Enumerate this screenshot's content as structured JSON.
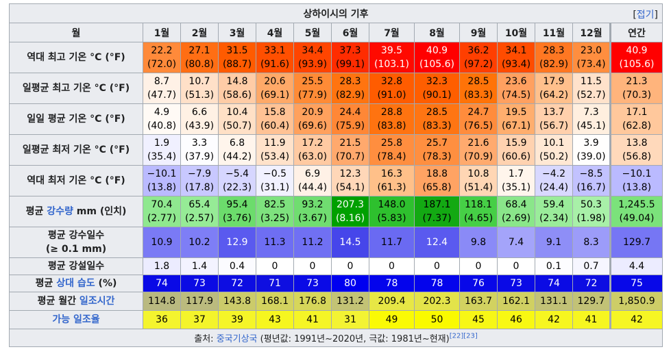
{
  "title": "상하이시의 기후",
  "toggle": {
    "label": "접기",
    "open": "[",
    "close": "]"
  },
  "months": [
    "1월",
    "2월",
    "3월",
    "4월",
    "5월",
    "6월",
    "7월",
    "8월",
    "9월",
    "10월",
    "11월",
    "12월",
    "연간"
  ],
  "corner": "월",
  "rows": [
    {
      "label_parts": [
        {
          "text": "역대 최고 기온 °C (°F)",
          "link": false
        }
      ],
      "bg": [
        "#ff8a3a",
        "#ff6e14",
        "#ff5b00",
        "#ff4f00",
        "#ff4500",
        "#ff2c00",
        "#ff0a00",
        "#ff0000",
        "#ff3f00",
        "#ff4c00",
        "#ff7722",
        "#ff8e3f",
        "#ff0000"
      ],
      "fg": [
        "#000000",
        "#000000",
        "#000000",
        "#000000",
        "#000000",
        "#000000",
        "#ffffff",
        "#ffffff",
        "#000000",
        "#000000",
        "#000000",
        "#000000",
        "#ffffff"
      ],
      "values": [
        [
          "22.2",
          "(72.0)"
        ],
        [
          "27.1",
          "(80.8)"
        ],
        [
          "31.5",
          "(88.7)"
        ],
        [
          "33.1",
          "(91.6)"
        ],
        [
          "34.4",
          "(93.9)"
        ],
        [
          "37.3",
          "(99.1)"
        ],
        [
          "39.5",
          "(103.1)"
        ],
        [
          "40.9",
          "(105.6)"
        ],
        [
          "36.2",
          "(97.2)"
        ],
        [
          "34.1",
          "(93.4)"
        ],
        [
          "28.3",
          "(82.9)"
        ],
        [
          "23.0",
          "(73.4)"
        ],
        [
          "40.9",
          "(105.6)"
        ]
      ]
    },
    {
      "label_parts": [
        {
          "text": "일평균 최고 기온 °C (°F)",
          "link": false
        }
      ],
      "bg": [
        "#fff1e6",
        "#ffe0c8",
        "#ffcca6",
        "#ffa968",
        "#ff8b36",
        "#ff7410",
        "#ff5c00",
        "#ff5e00",
        "#ff7308",
        "#ffa060",
        "#ffc08c",
        "#ffe2cb",
        "#ffb47c"
      ],
      "fg": [
        "#000000",
        "#000000",
        "#000000",
        "#000000",
        "#000000",
        "#000000",
        "#000000",
        "#000000",
        "#000000",
        "#000000",
        "#000000",
        "#000000",
        "#000000"
      ],
      "values": [
        [
          "8.7",
          "(47.7)"
        ],
        [
          "10.7",
          "(51.3)"
        ],
        [
          "14.8",
          "(58.6)"
        ],
        [
          "20.6",
          "(69.1)"
        ],
        [
          "25.5",
          "(77.9)"
        ],
        [
          "28.3",
          "(82.9)"
        ],
        [
          "32.8",
          "(91.0)"
        ],
        [
          "32.3",
          "(90.1)"
        ],
        [
          "28.5",
          "(83.3)"
        ],
        [
          "23.6",
          "(74.5)"
        ],
        [
          "17.9",
          "(64.2)"
        ],
        [
          "11.5",
          "(52.7)"
        ],
        [
          "21.3",
          "(70.3)"
        ]
      ]
    },
    {
      "label_parts": [
        {
          "text": "일일 평균 기온 °C (°F)",
          "link": false
        }
      ],
      "bg": [
        "#fffaf5",
        "#fff1e4",
        "#ffe0c6",
        "#ffc294",
        "#ffa15d",
        "#ff8736",
        "#ff7310",
        "#ff7513",
        "#ff8c3c",
        "#ffae6e",
        "#ffd0ac",
        "#ffefdf",
        "#ffc89c"
      ],
      "fg": [
        "#000000",
        "#000000",
        "#000000",
        "#000000",
        "#000000",
        "#000000",
        "#000000",
        "#000000",
        "#000000",
        "#000000",
        "#000000",
        "#000000",
        "#000000"
      ],
      "values": [
        [
          "4.9",
          "(40.8)"
        ],
        [
          "6.6",
          "(43.9)"
        ],
        [
          "10.4",
          "(50.7)"
        ],
        [
          "15.8",
          "(60.4)"
        ],
        [
          "20.9",
          "(69.6)"
        ],
        [
          "24.4",
          "(75.9)"
        ],
        [
          "28.8",
          "(83.8)"
        ],
        [
          "28.5",
          "(83.3)"
        ],
        [
          "24.7",
          "(76.5)"
        ],
        [
          "19.5",
          "(67.1)"
        ],
        [
          "13.7",
          "(56.7)"
        ],
        [
          "7.3",
          "(45.1)"
        ],
        [
          "17.1",
          "(62.8)"
        ]
      ]
    },
    {
      "label_parts": [
        {
          "text": "일평균 최저 기온 °C (°F)",
          "link": false
        }
      ],
      "bg": [
        "#f0f0ff",
        "#fdfdff",
        "#fff5ec",
        "#ffe2ca",
        "#ffcaa2",
        "#ffa96d",
        "#ff8e3f",
        "#ff8f40",
        "#ffaa6e",
        "#ffd2b0",
        "#ffe8d4",
        "#fffefd",
        "#ffd9bb"
      ],
      "fg": [
        "#000000",
        "#000000",
        "#000000",
        "#000000",
        "#000000",
        "#000000",
        "#000000",
        "#000000",
        "#000000",
        "#000000",
        "#000000",
        "#000000",
        "#000000"
      ],
      "values": [
        [
          "1.9",
          "(35.4)"
        ],
        [
          "3.3",
          "(37.9)"
        ],
        [
          "6.8",
          "(44.2)"
        ],
        [
          "11.9",
          "(53.4)"
        ],
        [
          "17.2",
          "(63.0)"
        ],
        [
          "21.5",
          "(70.7)"
        ],
        [
          "25.8",
          "(78.4)"
        ],
        [
          "25.7",
          "(78.3)"
        ],
        [
          "21.6",
          "(70.9)"
        ],
        [
          "15.9",
          "(60.6)"
        ],
        [
          "10.1",
          "(50.2)"
        ],
        [
          "3.9",
          "(39.0)"
        ],
        [
          "13.8",
          "(56.8)"
        ]
      ]
    },
    {
      "label_parts": [
        {
          "text": "역대 최저 기온 °C (°F)",
          "link": false
        }
      ],
      "bg": [
        "#babaff",
        "#c8c8ff",
        "#d6d6ff",
        "#f1f1ff",
        "#fff1e6",
        "#ffd7b8",
        "#ffc089",
        "#ffa363",
        "#ffd6b4",
        "#fff5ec",
        "#d8d8ff",
        "#c2c2ff",
        "#babaff"
      ],
      "fg": [
        "#000000",
        "#000000",
        "#000000",
        "#000000",
        "#000000",
        "#000000",
        "#000000",
        "#000000",
        "#000000",
        "#000000",
        "#000000",
        "#000000",
        "#000000"
      ],
      "values": [
        [
          "−10.1",
          "(13.8)"
        ],
        [
          "−7.9",
          "(17.8)"
        ],
        [
          "−5.4",
          "(22.3)"
        ],
        [
          "−0.5",
          "(31.1)"
        ],
        [
          "6.9",
          "(44.4)"
        ],
        [
          "12.3",
          "(54.1)"
        ],
        [
          "16.3",
          "(61.3)"
        ],
        [
          "18.8",
          "(65.8)"
        ],
        [
          "10.8",
          "(51.4)"
        ],
        [
          "1.7",
          "(35.1)"
        ],
        [
          "−4.2",
          "(24.4)"
        ],
        [
          "−8.5",
          "(16.7)"
        ],
        [
          "−10.1",
          "(13.8)"
        ]
      ]
    },
    {
      "label_parts": [
        {
          "text": "평균 ",
          "link": false
        },
        {
          "text": "강수량",
          "link": true
        },
        {
          "text": " mm (인치)",
          "link": false
        }
      ],
      "bg": [
        "#8fe88f",
        "#96eb96",
        "#6cdc6c",
        "#7ee27e",
        "#70dd70",
        "#00a000",
        "#2ec02e",
        "#13a913",
        "#46cf46",
        "#8ae68a",
        "#9aec9a",
        "#a8f0a8",
        "#7be27b"
      ],
      "fg": [
        "#000000",
        "#000000",
        "#000000",
        "#000000",
        "#000000",
        "#ffffff",
        "#000000",
        "#000000",
        "#000000",
        "#000000",
        "#000000",
        "#000000",
        "#000000"
      ],
      "values": [
        [
          "70.4",
          "(2.77)"
        ],
        [
          "65.4",
          "(2.57)"
        ],
        [
          "95.4",
          "(3.76)"
        ],
        [
          "82.5",
          "(3.25)"
        ],
        [
          "93.2",
          "(3.67)"
        ],
        [
          "207.3",
          "(8.16)"
        ],
        [
          "148.0",
          "(5.83)"
        ],
        [
          "187.1",
          "(7.37)"
        ],
        [
          "118.1",
          "(4.65)"
        ],
        [
          "68.4",
          "(2.69)"
        ],
        [
          "59.4",
          "(2.34)"
        ],
        [
          "50.3",
          "(1.98)"
        ],
        [
          "1,245.5",
          "(49.04)"
        ]
      ]
    },
    {
      "label_parts": [
        {
          "text": "평균 강수일수",
          "link": false
        },
        {
          "text": "(≥ 0.1 mm)",
          "link": false,
          "newline": true
        }
      ],
      "bg": [
        "#7a7af5",
        "#7e7ef6",
        "#5a5aef",
        "#6e6ef3",
        "#7070f3",
        "#4646ea",
        "#6a6af2",
        "#5a5aef",
        "#8a8af7",
        "#a4a4fa",
        "#8e8ef7",
        "#9c9cf9",
        "#7676f4"
      ],
      "fg": [
        "#000000",
        "#000000",
        "#ffffff",
        "#000000",
        "#000000",
        "#ffffff",
        "#000000",
        "#ffffff",
        "#000000",
        "#000000",
        "#000000",
        "#000000",
        "#000000"
      ],
      "values": [
        [
          "10.9"
        ],
        [
          "10.2"
        ],
        [
          "12.9"
        ],
        [
          "11.3"
        ],
        [
          "11.2"
        ],
        [
          "14.5"
        ],
        [
          "11.7"
        ],
        [
          "12.4"
        ],
        [
          "9.8"
        ],
        [
          "7.4"
        ],
        [
          "9.1"
        ],
        [
          "8.3"
        ],
        [
          "129.7"
        ]
      ]
    },
    {
      "label_parts": [
        {
          "text": "평균 강설일수",
          "link": false
        }
      ],
      "bg": [
        "#ececff",
        "#f3f3ff",
        "#fbfbff",
        "#ffffff",
        "#ffffff",
        "#ffffff",
        "#ffffff",
        "#ffffff",
        "#ffffff",
        "#ffffff",
        "#fdfdff",
        "#f6f6ff",
        "#ececff"
      ],
      "fg": [
        "#000000",
        "#000000",
        "#000000",
        "#000000",
        "#000000",
        "#000000",
        "#000000",
        "#000000",
        "#000000",
        "#000000",
        "#000000",
        "#000000",
        "#000000"
      ],
      "values": [
        [
          "1.8"
        ],
        [
          "1.4"
        ],
        [
          "0.4"
        ],
        [
          "0"
        ],
        [
          "0"
        ],
        [
          "0"
        ],
        [
          "0"
        ],
        [
          "0"
        ],
        [
          "0"
        ],
        [
          "0"
        ],
        [
          "0.1"
        ],
        [
          "0.7"
        ],
        [
          "4.4"
        ]
      ]
    },
    {
      "label_parts": [
        {
          "text": "평균 ",
          "link": false
        },
        {
          "text": "상대 습도",
          "link": true
        },
        {
          "text": " (%)",
          "link": false
        }
      ],
      "bg": [
        "#0a0ae6",
        "#0b0be4",
        "#0d0de2",
        "#0f0fe0",
        "#0a0ae6",
        "#0000f0",
        "#0404ec",
        "#0404ec",
        "#0808e8",
        "#0a0ae6",
        "#0b0be4",
        "#0d0de2",
        "#0808e8"
      ],
      "fg": [
        "#ffffff",
        "#ffffff",
        "#ffffff",
        "#ffffff",
        "#ffffff",
        "#ffffff",
        "#ffffff",
        "#ffffff",
        "#ffffff",
        "#ffffff",
        "#ffffff",
        "#ffffff",
        "#ffffff"
      ],
      "values": [
        [
          "74"
        ],
        [
          "73"
        ],
        [
          "72"
        ],
        [
          "71"
        ],
        [
          "73"
        ],
        [
          "80"
        ],
        [
          "78"
        ],
        [
          "78"
        ],
        [
          "76"
        ],
        [
          "73"
        ],
        [
          "74"
        ],
        [
          "72"
        ],
        [
          "75"
        ]
      ]
    },
    {
      "label_parts": [
        {
          "text": "평균 월간 ",
          "link": false
        },
        {
          "text": "일조시간",
          "link": true
        }
      ],
      "bg": [
        "#b9b980",
        "#bbbb7e",
        "#cbcb6a",
        "#d3d35f",
        "#d6d65a",
        "#c3c375",
        "#e7e745",
        "#e3e34a",
        "#d2d260",
        "#d0d062",
        "#c2c276",
        "#c2c276",
        "#cdcd67"
      ],
      "fg": [
        "#000000",
        "#000000",
        "#000000",
        "#000000",
        "#000000",
        "#000000",
        "#000000",
        "#000000",
        "#000000",
        "#000000",
        "#000000",
        "#000000",
        "#000000"
      ],
      "values": [
        [
          "114.8"
        ],
        [
          "117.9"
        ],
        [
          "143.8"
        ],
        [
          "168.1"
        ],
        [
          "176.8"
        ],
        [
          "131.2"
        ],
        [
          "209.4"
        ],
        [
          "202.3"
        ],
        [
          "163.7"
        ],
        [
          "162.1"
        ],
        [
          "131.1"
        ],
        [
          "129.7"
        ],
        [
          "1,850.9"
        ]
      ]
    },
    {
      "label_parts": [
        {
          "text": "가능 일조율",
          "link": true
        }
      ],
      "bg": [
        "#f4f42e",
        "#f4f42b",
        "#f5f528",
        "#f6f61f",
        "#f5f526",
        "#f3f333",
        "#fafa05",
        "#fafa00",
        "#f7f716",
        "#f8f813",
        "#f6f620",
        "#f6f620",
        "#f6f624"
      ],
      "fg": [
        "#000000",
        "#000000",
        "#000000",
        "#000000",
        "#000000",
        "#000000",
        "#000000",
        "#000000",
        "#000000",
        "#000000",
        "#000000",
        "#000000",
        "#000000"
      ],
      "values": [
        [
          "36"
        ],
        [
          "37"
        ],
        [
          "39"
        ],
        [
          "43"
        ],
        [
          "41"
        ],
        [
          "31"
        ],
        [
          "49"
        ],
        [
          "50"
        ],
        [
          "45"
        ],
        [
          "46"
        ],
        [
          "42"
        ],
        [
          "41"
        ],
        [
          "42"
        ]
      ]
    }
  ],
  "source": {
    "prefix": "출처: ",
    "link": "중국기상국",
    "suffix": " (평년값: 1991년~2020년, 극값: 1981년~현재)",
    "refs": "[22][23]"
  }
}
